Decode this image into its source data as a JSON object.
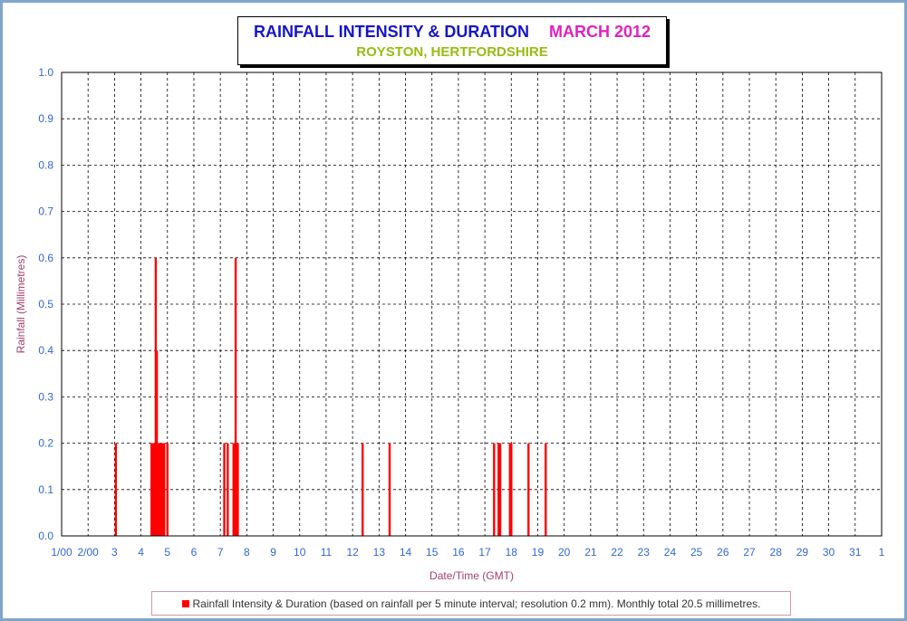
{
  "title": {
    "main": "RAINFALL INTENSITY & DURATION",
    "month": "MARCH 2012",
    "location": "ROYSTON, HERTFORDSHIRE"
  },
  "legend": {
    "text": "Rainfall Intensity & Duration (based on rainfall per 5 minute interval; resolution 0.2 mm). Monthly total 20.5 millimetres."
  },
  "colors": {
    "bars": "#ff0000",
    "title_main": "#1515c8",
    "title_month": "#e020c0",
    "subtitle": "#99bb11",
    "tick_labels": "#3366cc",
    "axis_labels": "#a04070",
    "frame": "#7ea6cc"
  },
  "chart_data": {
    "type": "bar",
    "xlabel": "Date/Time (GMT)",
    "ylabel": "Rainfall (Millimetres)",
    "ylim": [
      0,
      1.0
    ],
    "xlim": [
      1,
      32
    ],
    "grid": true,
    "legend_position": "bottom",
    "x_tick_labels": [
      "1/00",
      "2/00",
      "3",
      "4",
      "5",
      "6",
      "7",
      "8",
      "9",
      "10",
      "11",
      "12",
      "13",
      "14",
      "15",
      "16",
      "17",
      "18",
      "19",
      "20",
      "21",
      "22",
      "23",
      "24",
      "25",
      "26",
      "27",
      "28",
      "29",
      "30",
      "31",
      "1"
    ],
    "y_tick_labels": [
      "0.0",
      "0.1",
      "0.2",
      "0.3",
      "0.4",
      "0.5",
      "0.6",
      "0.7",
      "0.8",
      "0.9",
      "1.0"
    ],
    "series": [
      {
        "name": "Rainfall Intensity & Duration",
        "points": [
          {
            "x": 3.05,
            "y": 0.2
          },
          {
            "x": 4.4,
            "y": 0.2
          },
          {
            "x": 4.44,
            "y": 0.2
          },
          {
            "x": 4.48,
            "y": 0.2
          },
          {
            "x": 4.52,
            "y": 0.2
          },
          {
            "x": 4.56,
            "y": 0.6
          },
          {
            "x": 4.6,
            "y": 0.4
          },
          {
            "x": 4.64,
            "y": 0.2
          },
          {
            "x": 4.68,
            "y": 0.2
          },
          {
            "x": 4.72,
            "y": 0.2
          },
          {
            "x": 4.76,
            "y": 0.2
          },
          {
            "x": 4.8,
            "y": 0.2
          },
          {
            "x": 4.84,
            "y": 0.2
          },
          {
            "x": 4.88,
            "y": 0.2
          },
          {
            "x": 5.0,
            "y": 0.2
          },
          {
            "x": 7.15,
            "y": 0.2
          },
          {
            "x": 7.28,
            "y": 0.2
          },
          {
            "x": 7.5,
            "y": 0.2
          },
          {
            "x": 7.55,
            "y": 0.2
          },
          {
            "x": 7.58,
            "y": 0.6
          },
          {
            "x": 7.62,
            "y": 0.2
          },
          {
            "x": 7.66,
            "y": 0.2
          },
          {
            "x": 12.38,
            "y": 0.2
          },
          {
            "x": 13.4,
            "y": 0.2
          },
          {
            "x": 17.35,
            "y": 0.2
          },
          {
            "x": 17.52,
            "y": 0.2
          },
          {
            "x": 17.58,
            "y": 0.2
          },
          {
            "x": 17.95,
            "y": 0.2
          },
          {
            "x": 18.0,
            "y": 0.2
          },
          {
            "x": 18.65,
            "y": 0.2
          },
          {
            "x": 19.3,
            "y": 0.2
          }
        ]
      }
    ]
  }
}
